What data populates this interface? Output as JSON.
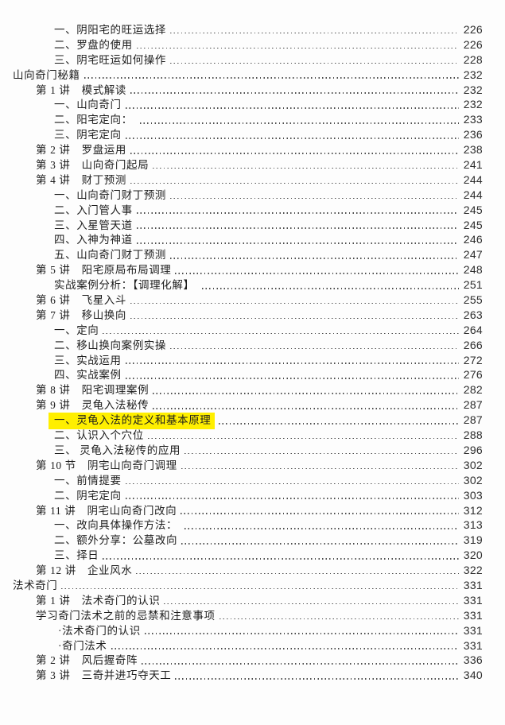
{
  "page": {
    "background_color": "#fdfdfd",
    "text_color": "#1d1d1d",
    "highlight_color": "#ffef00"
  },
  "toc": {
    "entries": [
      {
        "level": 2,
        "text": "一、阴阳宅的旺运选择",
        "page": "226"
      },
      {
        "level": 2,
        "text": "二、罗盘的使用",
        "page": "226"
      },
      {
        "level": 2,
        "text": "三、阴宅旺运如何操作",
        "page": "228"
      },
      {
        "level": 0,
        "text": "山向奇门秘籍",
        "page": "232"
      },
      {
        "level": 1,
        "text": "第 1 讲　模式解读",
        "page": "232"
      },
      {
        "level": 2,
        "text": "一、山向奇门",
        "page": "232"
      },
      {
        "level": 2,
        "text": "二、阳宅定向： ",
        "page": "233"
      },
      {
        "level": 2,
        "text": "三、阴宅定向",
        "page": "236"
      },
      {
        "level": 1,
        "text": "第 2 讲　罗盘运用",
        "page": "238"
      },
      {
        "level": 1,
        "text": "第 3 讲　山向奇门起局",
        "page": "241"
      },
      {
        "level": 1,
        "text": "第 4 讲　财丁预测",
        "page": "244"
      },
      {
        "level": 2,
        "text": "一、山向奇门财丁预测",
        "page": "244"
      },
      {
        "level": 2,
        "text": "二、入门管人事",
        "page": "245"
      },
      {
        "level": 2,
        "text": "三、入星管天道",
        "page": "245"
      },
      {
        "level": 2,
        "text": "四、入神为神道",
        "page": "246"
      },
      {
        "level": 2,
        "text": "五、山向奇门财丁预测",
        "page": "247"
      },
      {
        "level": 1,
        "text": "第 5 讲　阳宅原局布局调理",
        "page": "248"
      },
      {
        "level": 2,
        "text": "实战案例分析：【调理化解】 ",
        "page": "251"
      },
      {
        "level": 1,
        "text": "第 6 讲　飞星入斗",
        "page": "255"
      },
      {
        "level": 1,
        "text": "第 7 讲　移山换向",
        "page": "263"
      },
      {
        "level": 2,
        "text": "一、定向",
        "page": "264"
      },
      {
        "level": 2,
        "text": "二、移山换向案例实操",
        "page": "266"
      },
      {
        "level": 2,
        "text": "三、实战运用",
        "page": "272"
      },
      {
        "level": 2,
        "text": "四、实战案例",
        "page": "276"
      },
      {
        "level": 1,
        "text": "第 8 讲　阳宅调理案例",
        "page": "282"
      },
      {
        "level": 1,
        "text": "第 9 讲　灵龟入法秘传",
        "page": "287"
      },
      {
        "level": 2,
        "text": "一、灵龟入法的定义和基本原理",
        "page": "287",
        "highlight": true
      },
      {
        "level": 2,
        "text": "二、认识入个穴位",
        "page": "288"
      },
      {
        "level": 2,
        "text": "三、 灵龟入法秘传的应用",
        "page": "296"
      },
      {
        "level": 1,
        "text": "第 10 节　阴宅山向奇门调理",
        "page": "302"
      },
      {
        "level": 2,
        "text": "一、前情提要",
        "page": "302"
      },
      {
        "level": 2,
        "text": "二、阴宅定向",
        "page": "303"
      },
      {
        "level": 1,
        "text": "第 11 讲　阴宅山向奇门改向",
        "page": "312"
      },
      {
        "level": 2,
        "text": "一、改向具体操作方法： ",
        "page": "313"
      },
      {
        "level": 2,
        "text": "二、额外分享：公墓改向",
        "page": "319"
      },
      {
        "level": 2,
        "text": "三、择日",
        "page": "320"
      },
      {
        "level": 1,
        "text": "第 12 讲　企业风水",
        "page": "322"
      },
      {
        "level": 0,
        "text": "法术奇门",
        "page": "331"
      },
      {
        "level": 1,
        "text": "第 1 讲　法术奇门的认识",
        "page": "331"
      },
      {
        "level": 1,
        "text": "学习奇门法术之前的忌禁和注意事项",
        "page": "331"
      },
      {
        "level": 3,
        "text": "·法术奇门的认识",
        "page": "331"
      },
      {
        "level": 3,
        "text": "·奇门法术",
        "page": "331"
      },
      {
        "level": 1,
        "text": "第 2 讲　风后握奇阵",
        "page": "336"
      },
      {
        "level": 1,
        "text": "第 3 讲　三奇并进巧夺天工",
        "page": "340"
      }
    ]
  }
}
